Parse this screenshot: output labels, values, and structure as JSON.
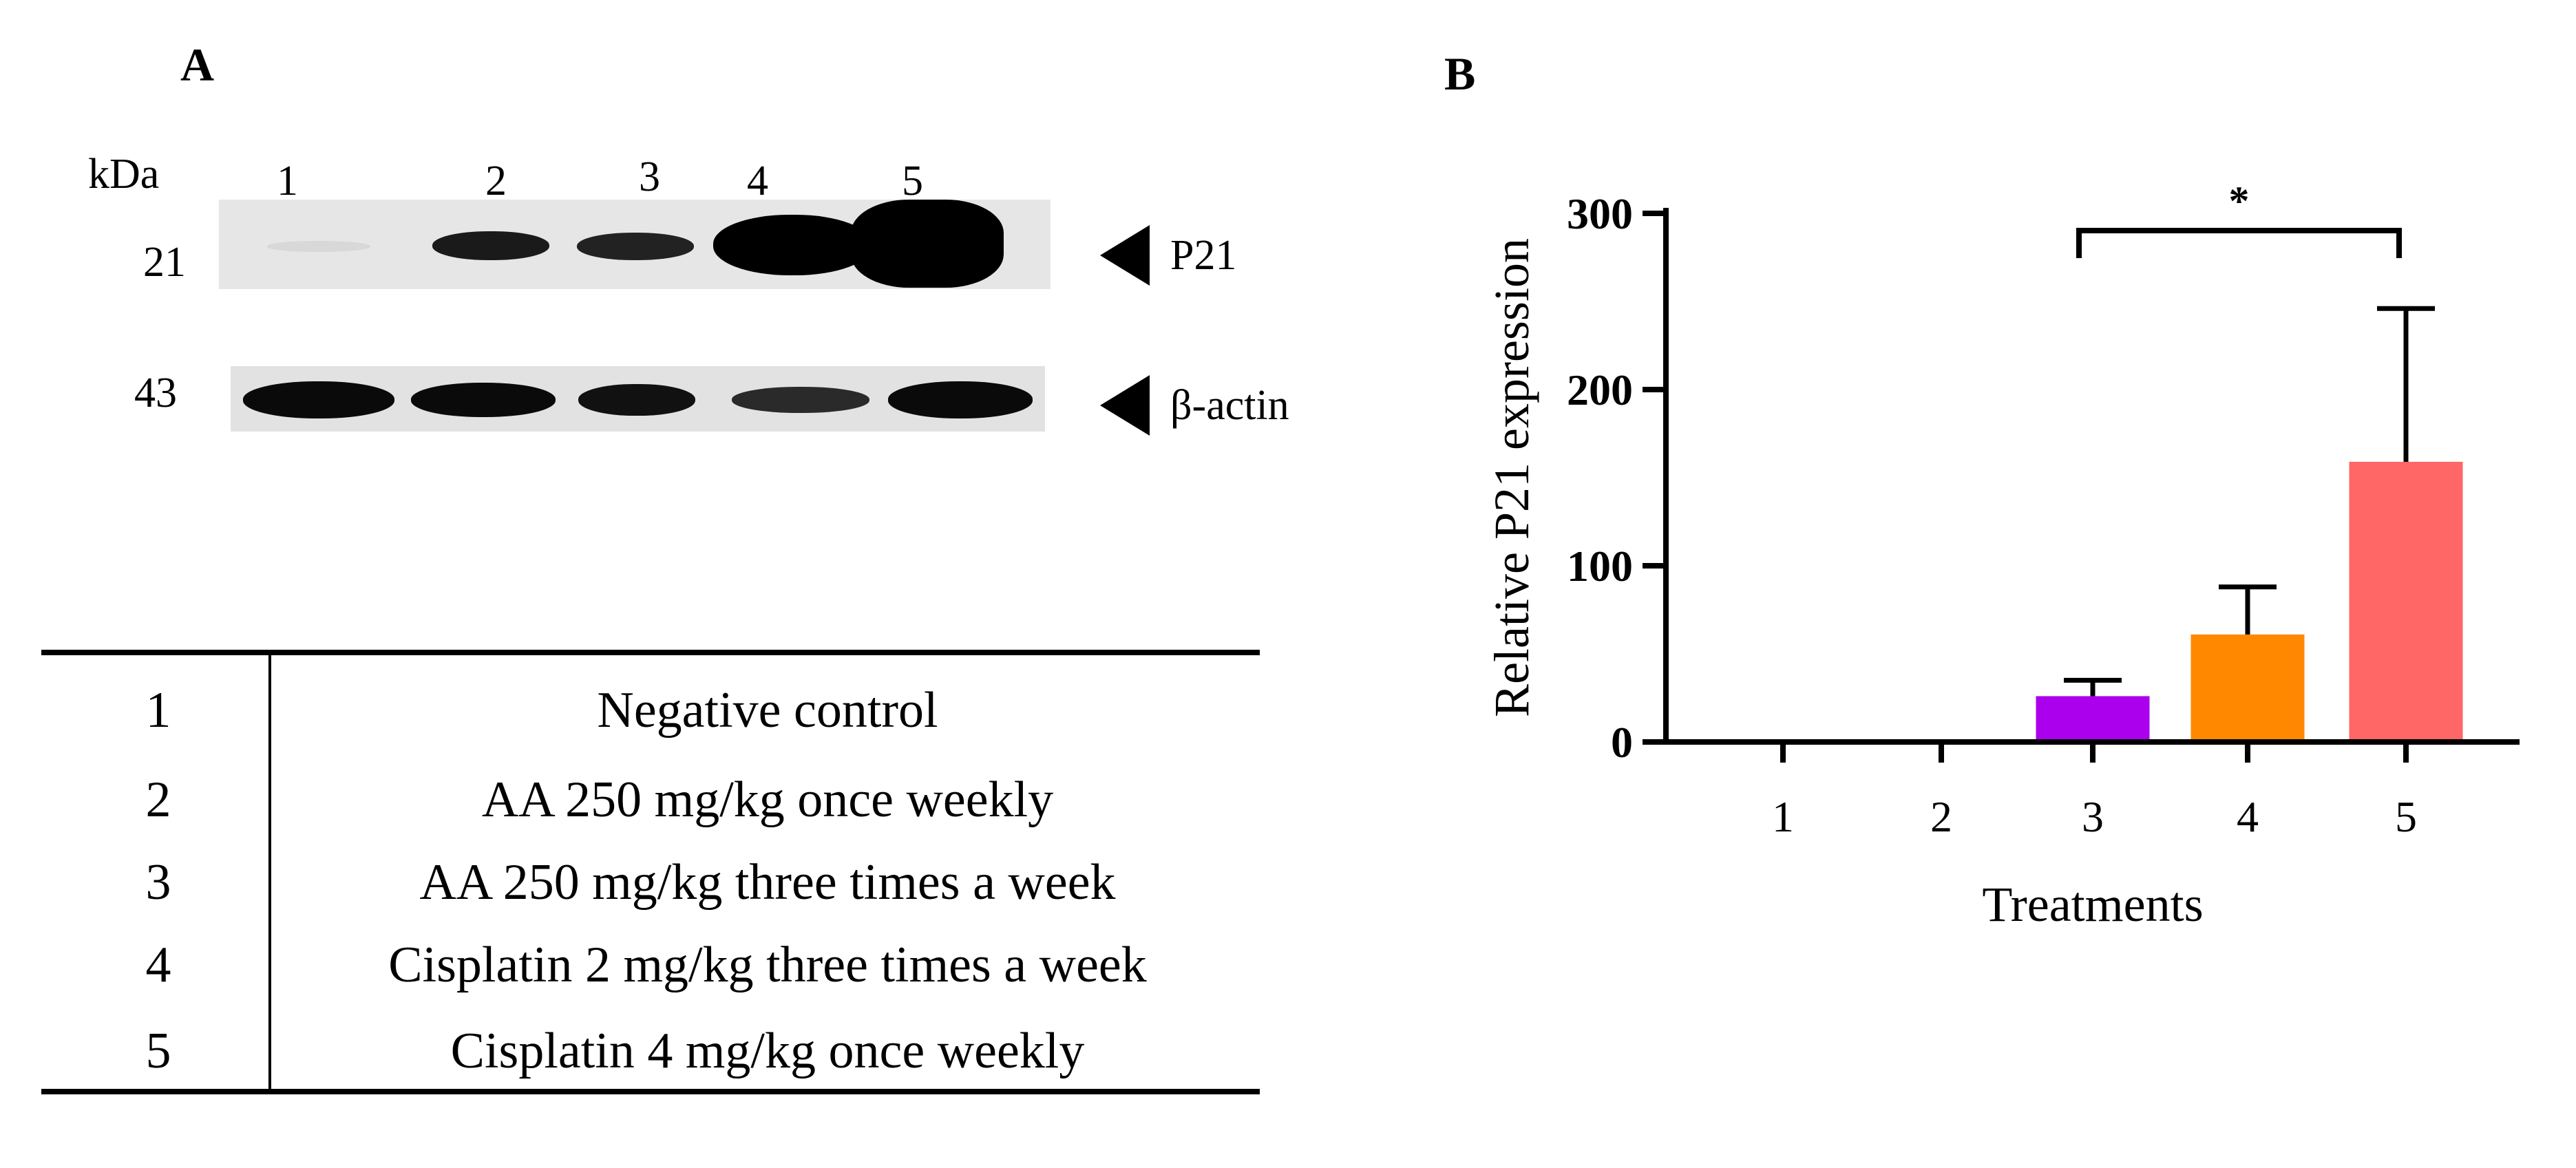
{
  "panel_a": {
    "letter": "A",
    "kda_label": "kDa",
    "lanes": [
      "1",
      "2",
      "3",
      "4",
      "5"
    ],
    "p21_marker": "21",
    "actin_marker": "43",
    "p21_label": "P21",
    "actin_label": "β-actin"
  },
  "legend_table": {
    "rows": [
      {
        "num": "1",
        "text": "Negative control"
      },
      {
        "num": "2",
        "text": "AA 250 mg/kg once weekly"
      },
      {
        "num": "3",
        "text": "AA 250 mg/kg three times a week"
      },
      {
        "num": "4",
        "text": "Cisplatin 2 mg/kg three times a week"
      },
      {
        "num": "5",
        "text": "Cisplatin 4 mg/kg once weekly"
      }
    ]
  },
  "panel_b": {
    "letter": "B"
  },
  "chart_data": {
    "type": "bar",
    "categories": [
      "1",
      "2",
      "3",
      "4",
      "5"
    ],
    "values": [
      1,
      1,
      26,
      61,
      159
    ],
    "errors": [
      0,
      0,
      9,
      27,
      87
    ],
    "colors": [
      "#2020c0",
      "#20a020",
      "#aa00ee",
      "#ff8800",
      "#ff6666"
    ],
    "xlabel": "Treatments",
    "ylabel": "Relative P21 expression",
    "ylim": [
      0,
      300
    ],
    "yticks": [
      0,
      100,
      200,
      300
    ],
    "significance": {
      "from": "3",
      "to": "5",
      "label": "*"
    },
    "grid": false
  }
}
